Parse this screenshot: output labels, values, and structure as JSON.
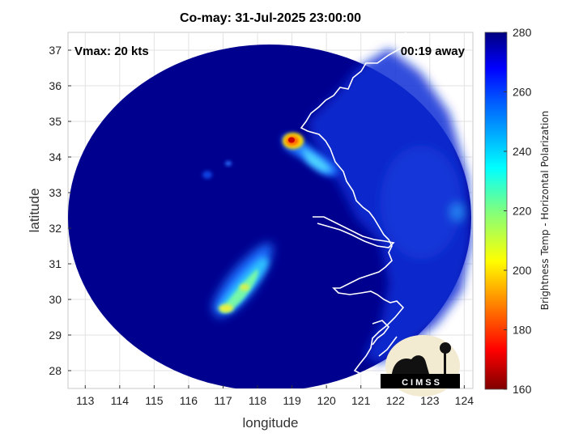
{
  "title": "Co-may: 31-Jul-2025 23:00:00",
  "vmax_text": "Vmax: 20 kts",
  "time_away_text": "00:19 away",
  "xlabel": "longitude",
  "ylabel": "latitude",
  "x_ticks": [
    "113",
    "114",
    "115",
    "116",
    "117",
    "118",
    "119",
    "120",
    "121",
    "122",
    "123",
    "124"
  ],
  "y_ticks": [
    "28",
    "29",
    "30",
    "31",
    "32",
    "33",
    "34",
    "35",
    "36",
    "37"
  ],
  "colorbar": {
    "label": "Brightness Temp - Horizontal Polarization",
    "ticks": [
      "160",
      "180",
      "200",
      "220",
      "240",
      "260",
      "280"
    ],
    "min": 160,
    "max": 280
  },
  "logo": {
    "text": "CIMSS"
  },
  "colors": {
    "background_swath": "#00008f",
    "coastline": "#ffffff"
  }
}
